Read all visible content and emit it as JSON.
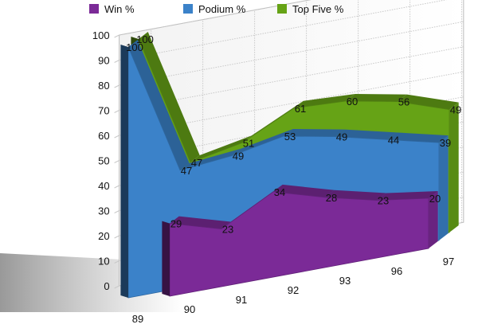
{
  "chart_data": {
    "type": "area",
    "title": "",
    "xlabel": "",
    "ylabel": "",
    "ylim": [
      0,
      100
    ],
    "y_ticks": [
      "0",
      "10",
      "20",
      "30",
      "40",
      "50",
      "60",
      "70",
      "80",
      "90",
      "100"
    ],
    "categories": [
      "89",
      "90",
      "91",
      "92",
      "93",
      "96",
      "97"
    ],
    "grid": true,
    "three_d": true,
    "legend_position": "top",
    "series": [
      {
        "name": "Win %",
        "color": "#7b2a97",
        "values": [
          null,
          29,
          23,
          34,
          28,
          23,
          20
        ]
      },
      {
        "name": "Podium %",
        "color": "#3b82c9",
        "values": [
          100,
          47,
          49,
          53,
          49,
          44,
          39
        ]
      },
      {
        "name": "Top Five %",
        "color": "#66a316",
        "values": [
          100,
          47,
          51,
          61,
          60,
          56,
          49
        ]
      }
    ]
  }
}
